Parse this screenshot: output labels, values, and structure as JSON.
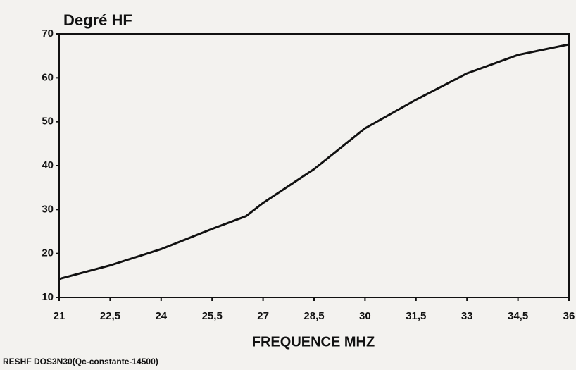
{
  "chart_data": {
    "type": "line",
    "title": "Degré HF",
    "x_label": "FREQUENCE MHZ",
    "footer": "RESHF DOS3N30(Qc-constante-14500)",
    "x": [
      21,
      22.5,
      24,
      25.5,
      26.5,
      27,
      28.5,
      30,
      31.5,
      33,
      34.5,
      36
    ],
    "series": [
      {
        "color": "#111111",
        "values": [
          14.2,
          17.3,
          21,
          25.6,
          28.5,
          31.5,
          39.2,
          48.5,
          55,
          61,
          65.2,
          67.6
        ]
      }
    ],
    "xlim": [
      21,
      36
    ],
    "xticks": [
      21,
      {
        "value": 22.5,
        "label": "22,5"
      },
      24,
      {
        "value": 25.5,
        "label": "25,5"
      },
      27,
      {
        "value": 28.5,
        "label": "28,5"
      },
      30,
      {
        "value": 31.5,
        "label": "31,5"
      },
      33,
      {
        "value": 34.5,
        "label": "34,5"
      },
      36
    ],
    "ylim": [
      10,
      70
    ],
    "yticks": [
      10,
      20,
      30,
      40,
      50,
      60,
      70
    ],
    "grid": false
  }
}
